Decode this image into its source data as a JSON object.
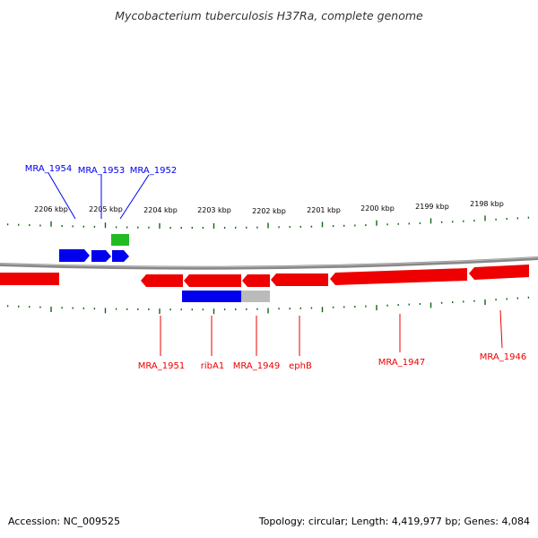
{
  "title": "Mycobacterium tuberculosis H37Ra, complete genome",
  "footer": {
    "accession": "Accession: NC_009525",
    "summary": "Topology: circular; Length: 4,419,977 bp; Genes: 4,084"
  },
  "colors": {
    "forward_strand": "#0000ee",
    "reverse_strand": "#ee0000",
    "rna_feature": "#22bb22",
    "cds_partial": "#bbbbbb",
    "tick": "#116611",
    "backbone": "#888888"
  },
  "scale": {
    "unit": "kbp",
    "ticks": [
      {
        "label": "2206 kbp"
      },
      {
        "label": "2205 kbp"
      },
      {
        "label": "2204 kbp"
      },
      {
        "label": "2203 kbp"
      },
      {
        "label": "2202 kbp"
      },
      {
        "label": "2201 kbp"
      },
      {
        "label": "2200 kbp"
      },
      {
        "label": "2199 kbp"
      },
      {
        "label": "2198 kbp"
      }
    ]
  },
  "forward_genes": [
    {
      "label": "MRA_1954"
    },
    {
      "label": "MRA_1953"
    },
    {
      "label": "MRA_1952"
    }
  ],
  "reverse_genes": [
    {
      "label": "MRA_1951"
    },
    {
      "label": "ribA1"
    },
    {
      "label": "MRA_1949"
    },
    {
      "label": "ephB"
    },
    {
      "label": "MRA_1947"
    },
    {
      "label": "MRA_1946"
    }
  ]
}
